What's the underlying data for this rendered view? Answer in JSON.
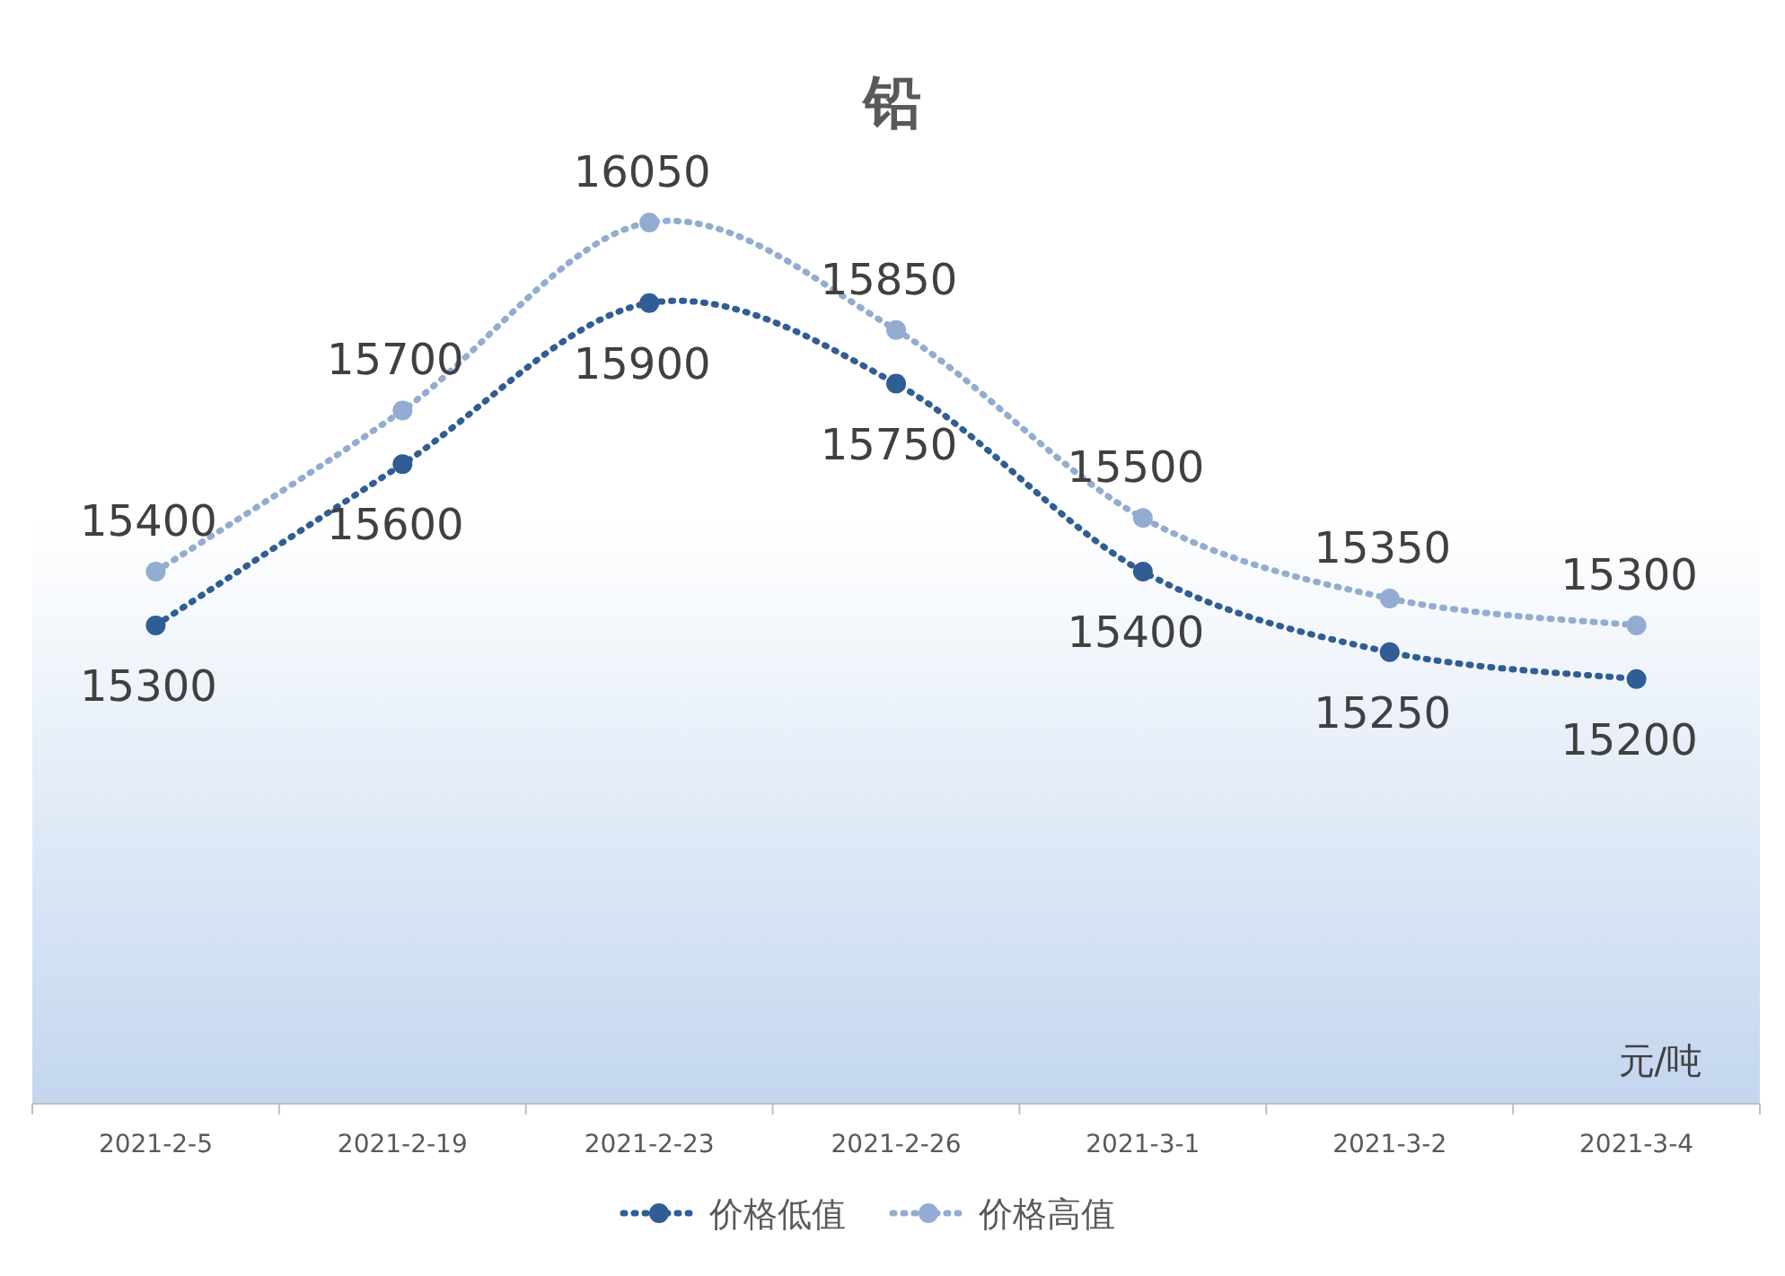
{
  "chart_data": {
    "type": "line",
    "title": "铅",
    "categories": [
      "2021-2-5",
      "2021-2-19",
      "2021-2-23",
      "2021-2-26",
      "2021-3-1",
      "2021-3-2",
      "2021-3-4"
    ],
    "series": [
      {
        "name": "价格低值",
        "color": "#2f5d94",
        "values": [
          15300,
          15600,
          15900,
          15750,
          15400,
          15250,
          15200
        ]
      },
      {
        "name": "价格高值",
        "color": "#93acd1",
        "values": [
          15400,
          15700,
          16050,
          15850,
          15500,
          15350,
          15300
        ]
      }
    ],
    "annotations": [
      "元/吨"
    ],
    "data_labels": true,
    "marker": "circle",
    "line_style": "dotted",
    "legend": "bottom"
  }
}
